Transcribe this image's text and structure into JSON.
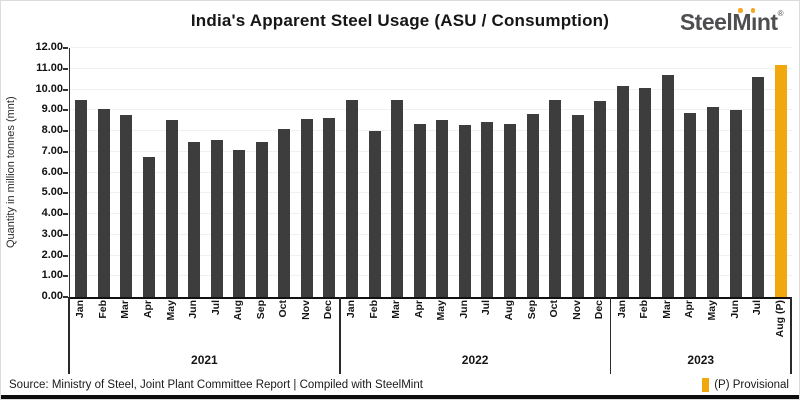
{
  "header": {
    "title": "India's Apparent Steel Usage (ASU / Consumption)",
    "logo": {
      "pre": "Steel",
      "mid": "M",
      "end": "ınt",
      "registered": "®",
      "dot_color": "#F5A623",
      "text_color": "#4E4E50"
    }
  },
  "chart_data": {
    "type": "bar",
    "title": "India's Apparent Steel Usage (ASU / Consumption)",
    "ylabel": "Quantity in million tonnes (mnt)",
    "ylim": [
      0,
      12
    ],
    "ytick_step": 1,
    "ytick_decimals": 2,
    "grid": true,
    "legend_position": "bottom-right",
    "bar_color": "#3D3D3D",
    "highlight": {
      "month": "Aug (P)",
      "color": "#F1A70E"
    },
    "groups": [
      {
        "year": "2021",
        "months": [
          "Jan",
          "Feb",
          "Mar",
          "Apr",
          "May",
          "Jun",
          "Jul",
          "Aug",
          "Sep",
          "Oct",
          "Nov",
          "Dec"
        ],
        "values": [
          9.5,
          9.05,
          8.75,
          6.75,
          8.55,
          7.45,
          7.55,
          7.1,
          7.45,
          8.1,
          8.6,
          8.65
        ]
      },
      {
        "year": "2022",
        "months": [
          "Jan",
          "Feb",
          "Mar",
          "Apr",
          "May",
          "Jun",
          "Jul",
          "Aug",
          "Sep",
          "Oct",
          "Nov",
          "Dec"
        ],
        "values": [
          9.5,
          8.0,
          9.5,
          8.35,
          8.55,
          8.3,
          8.45,
          8.35,
          8.8,
          9.5,
          8.75,
          9.45
        ]
      },
      {
        "year": "2023",
        "months": [
          "Jan",
          "Feb",
          "Mar",
          "Apr",
          "May",
          "Jun",
          "Jul",
          "Aug (P)"
        ],
        "values": [
          10.15,
          10.05,
          10.7,
          8.85,
          9.15,
          9.0,
          10.6,
          11.2
        ]
      }
    ]
  },
  "footer": {
    "source": "Source: Ministry of Steel, Joint Plant Committee Report | Compiled with SteelMint",
    "legend": {
      "label": "(P) Provisional",
      "color": "#F1A70E"
    }
  }
}
